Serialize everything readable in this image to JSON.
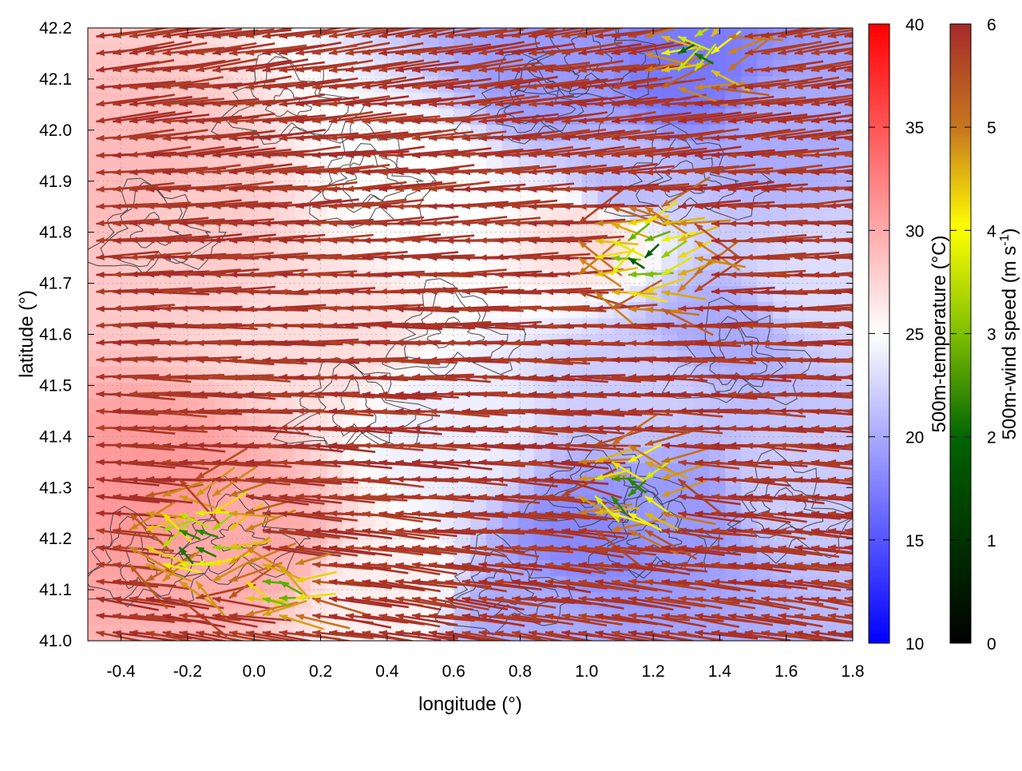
{
  "chart_data": {
    "type": "vector-field",
    "title": "",
    "xlabel": "longitude (°)",
    "ylabel": "latitude (°)",
    "xlim": [
      -0.5,
      1.8
    ],
    "ylim": [
      41.0,
      42.2
    ],
    "x_ticks": [
      "-0.4",
      "-0.2",
      "0.0",
      "0.2",
      "0.4",
      "0.6",
      "0.8",
      "1.0",
      "1.2",
      "1.4",
      "1.6",
      "1.8"
    ],
    "x_tick_values": [
      -0.4,
      -0.2,
      0.0,
      0.2,
      0.4,
      0.6,
      0.8,
      1.0,
      1.2,
      1.4,
      1.6,
      1.8
    ],
    "y_ticks": [
      "41.0",
      "41.1",
      "41.2",
      "41.3",
      "41.4",
      "41.5",
      "41.6",
      "41.7",
      "41.8",
      "41.9",
      "42.0",
      "42.1",
      "42.2"
    ],
    "y_tick_values": [
      41.0,
      41.1,
      41.2,
      41.3,
      41.4,
      41.5,
      41.6,
      41.7,
      41.8,
      41.9,
      42.0,
      42.1,
      42.2
    ],
    "grid": true,
    "temperature_colorbar": {
      "label": "500m-temperature (°C)",
      "range": [
        10,
        40
      ],
      "ticks": [
        "10",
        "15",
        "20",
        "25",
        "30",
        "35",
        "40"
      ],
      "tick_values": [
        10,
        15,
        20,
        25,
        30,
        35,
        40
      ],
      "colors": [
        "#0000ff",
        "#ffffff",
        "#ff0000"
      ]
    },
    "wind_colorbar": {
      "label_main": "500m-wind speed (m s",
      "label_sup": "-1",
      "label_end": ")",
      "range": [
        0,
        6
      ],
      "ticks": [
        "0",
        "1",
        "2",
        "3",
        "4",
        "5",
        "6"
      ],
      "tick_values": [
        0,
        1,
        2,
        3,
        4,
        5,
        6
      ],
      "colors": [
        "#000000",
        "#006400",
        "#7fbf00",
        "#ffff00",
        "#d4a017",
        "#c8781e",
        "#a52a2a"
      ]
    },
    "temperature_field": [
      {
        "lon": -0.4,
        "lat": 41.9,
        "t": 29
      },
      {
        "lon": -0.2,
        "lat": 41.8,
        "t": 28
      },
      {
        "lon": -0.3,
        "lat": 41.3,
        "t": 31
      },
      {
        "lon": 0.0,
        "lat": 41.2,
        "t": 30
      },
      {
        "lon": 0.2,
        "lat": 41.6,
        "t": 27
      },
      {
        "lon": 0.5,
        "lat": 41.9,
        "t": 25
      },
      {
        "lon": 0.9,
        "lat": 42.1,
        "t": 19
      },
      {
        "lon": 1.3,
        "lat": 42.1,
        "t": 17
      },
      {
        "lon": 1.6,
        "lat": 42.0,
        "t": 20
      },
      {
        "lon": 1.1,
        "lat": 41.9,
        "t": 21
      },
      {
        "lon": 1.0,
        "lat": 41.8,
        "t": 27
      },
      {
        "lon": 1.4,
        "lat": 41.6,
        "t": 20
      },
      {
        "lon": 1.7,
        "lat": 41.7,
        "t": 23
      },
      {
        "lon": 1.2,
        "lat": 41.5,
        "t": 22
      },
      {
        "lon": 1.0,
        "lat": 41.2,
        "t": 18
      },
      {
        "lon": 1.3,
        "lat": 41.25,
        "t": 19
      },
      {
        "lon": 1.6,
        "lat": 41.3,
        "t": 22
      },
      {
        "lon": 0.8,
        "lat": 41.05,
        "t": 20
      },
      {
        "lon": 0.6,
        "lat": 41.4,
        "t": 24
      },
      {
        "lon": 0.4,
        "lat": 41.1,
        "t": 26
      }
    ],
    "dominant_flow": "westward (easterly winds) across most of the domain, strongest (about 6 m s-1) in the west and north",
    "weak_wind_zones": [
      {
        "lon": 1.15,
        "lat": 41.75,
        "note": "divergent, light winds"
      },
      {
        "lon": -0.2,
        "lat": 41.2,
        "note": "light mixed-direction winds"
      },
      {
        "lon": 1.3,
        "lat": 42.15,
        "note": "light winds"
      }
    ]
  }
}
